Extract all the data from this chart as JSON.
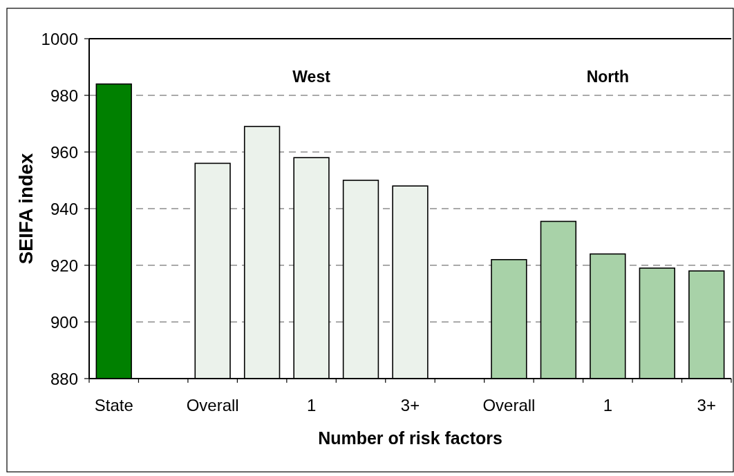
{
  "chart_data": {
    "type": "bar",
    "xlabel": "Number of risk factors",
    "ylabel": "SEIFA index",
    "categories": [
      "State",
      null,
      "Overall",
      null,
      "1",
      null,
      "3+",
      null,
      "Overall",
      null,
      "1",
      null,
      "3+"
    ],
    "values": [
      984,
      null,
      956,
      969,
      958,
      950,
      948,
      null,
      922,
      935.5,
      924,
      919,
      918
    ],
    "colors": [
      "#008000",
      null,
      "#ebf2eb",
      "#ebf2eb",
      "#ebf2eb",
      "#ebf2eb",
      "#ebf2eb",
      null,
      "#a8d2a8",
      "#a8d2a8",
      "#a8d2a8",
      "#a8d2a8",
      "#a8d2a8"
    ],
    "ylim": [
      880,
      1000
    ],
    "yticks": [
      880,
      900,
      920,
      940,
      960,
      980,
      1000
    ],
    "grid": "y",
    "annotations": [
      "West",
      "North"
    ]
  }
}
